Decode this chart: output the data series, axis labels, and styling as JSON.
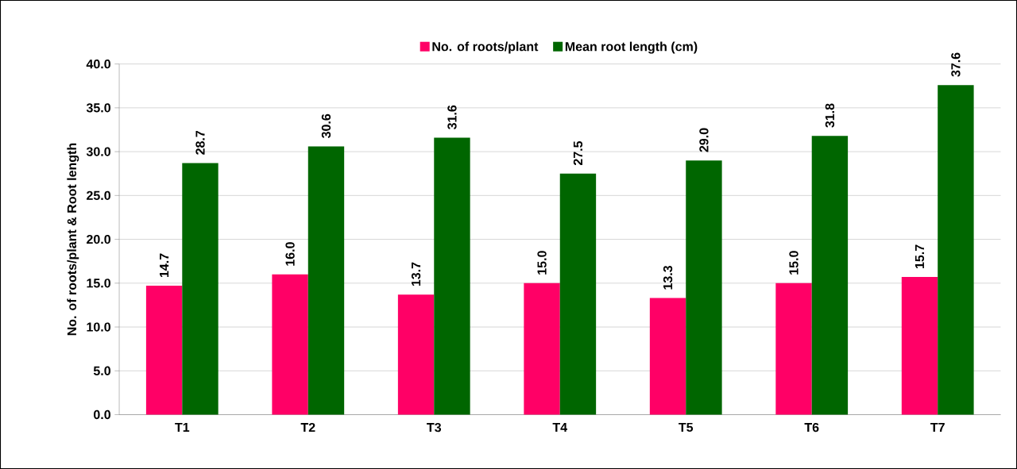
{
  "chart_data": {
    "type": "bar",
    "ylabel": "No. of roots/plant & Root length",
    "categories": [
      "T1",
      "T2",
      "T3",
      "T4",
      "T5",
      "T6",
      "T7"
    ],
    "series": [
      {
        "name": "No. of roots/plant",
        "color": "#ff0066",
        "values": [
          14.7,
          16.0,
          13.7,
          15.0,
          13.3,
          15.0,
          15.7
        ],
        "value_labels": [
          "14.7",
          "16.0",
          "13.7",
          "15.0",
          "13.3",
          "15.0",
          "15.7"
        ]
      },
      {
        "name": "Mean root length (cm)",
        "color": "#006600",
        "values": [
          28.7,
          30.6,
          31.6,
          27.5,
          29.0,
          31.8,
          37.6
        ],
        "value_labels": [
          "28.7",
          "30.6",
          "31.6",
          "27.5",
          "29.0",
          "31.8",
          "37.6"
        ]
      }
    ],
    "ylim": [
      0,
      40
    ],
    "yticks": [
      {
        "value": 0,
        "label": "0.0"
      },
      {
        "value": 5,
        "label": "5.0"
      },
      {
        "value": 10,
        "label": "10.0"
      },
      {
        "value": 15,
        "label": "15.0"
      },
      {
        "value": 20,
        "label": "20.0"
      },
      {
        "value": 25,
        "label": "25.0"
      },
      {
        "value": 30,
        "label": "30.0"
      },
      {
        "value": 35,
        "label": "35.0"
      },
      {
        "value": 40,
        "label": "40.0"
      }
    ],
    "grid": "y",
    "legend": "top"
  }
}
